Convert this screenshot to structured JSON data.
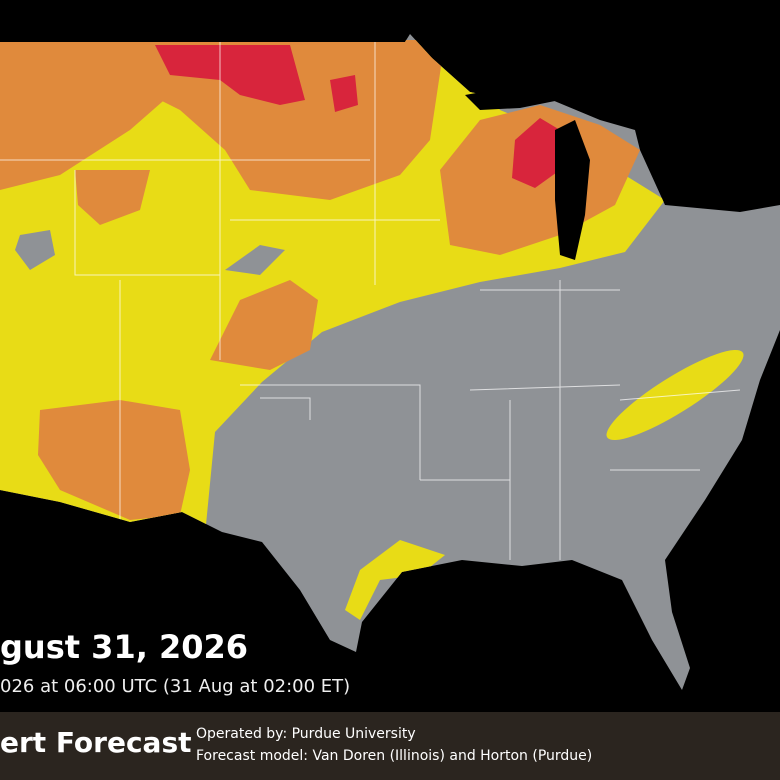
{
  "headline": {
    "date": "gust 31, 2026",
    "time": "026 at 06:00 UTC (31 Aug at 02:00 ET)"
  },
  "footer": {
    "brand": "ert Forecast",
    "operator": "Operated by: Purdue University",
    "model": "Forecast model: Van Doren (Illinois) and Horton (Purdue)"
  }
}
